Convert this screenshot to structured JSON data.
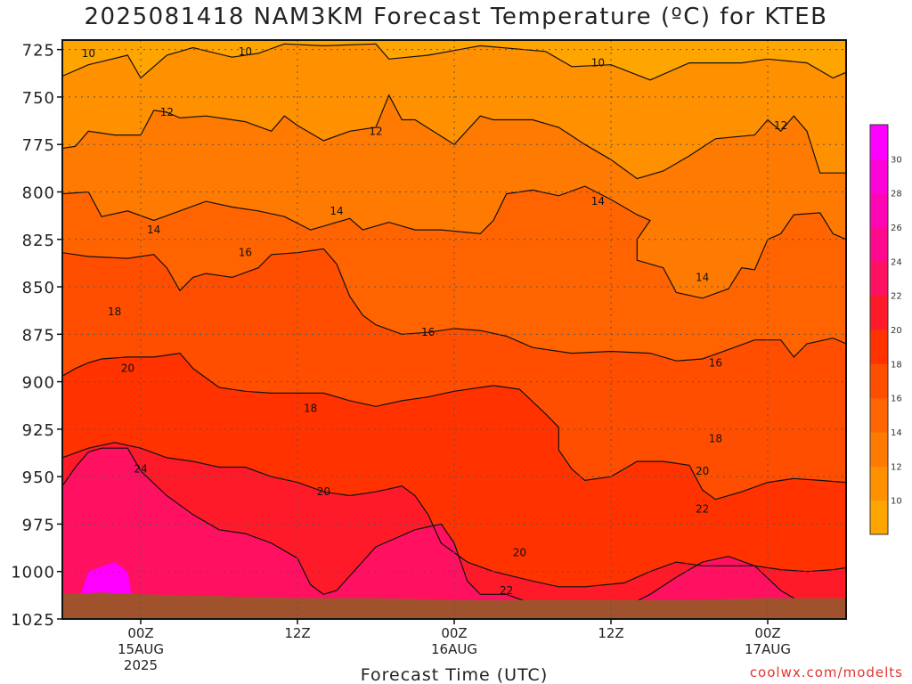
{
  "title": "2025081418 NAM3KM Forecast Temperature (ºC) for KTEB",
  "credit": "coolwx.com/modelts",
  "colors": {
    "ground": "#a0522d",
    "grid": "#555555",
    "contour": "#111111"
  },
  "chart_data": {
    "type": "heatmap",
    "title": "2025081418 NAM3KM Forecast Temperature (ºC) for KTEB",
    "xlabel": "Forecast Time (UTC)",
    "ylabel": "",
    "y_ticks": [
      725,
      750,
      775,
      800,
      825,
      850,
      875,
      900,
      925,
      950,
      975,
      1000,
      1025
    ],
    "y_range": [
      1025,
      720
    ],
    "x_ticks": [
      {
        "hour": 6,
        "label": "00Z",
        "sub1": "15AUG",
        "sub2": "2025"
      },
      {
        "hour": 18,
        "label": "12Z",
        "sub1": "",
        "sub2": ""
      },
      {
        "hour": 30,
        "label": "00Z",
        "sub1": "16AUG",
        "sub2": ""
      },
      {
        "hour": 42,
        "label": "12Z",
        "sub1": "",
        "sub2": ""
      },
      {
        "hour": 54,
        "label": "00Z",
        "sub1": "17AUG",
        "sub2": ""
      }
    ],
    "x_range": [
      0,
      60
    ],
    "grid": true,
    "colorbar": {
      "levels": [
        10,
        12,
        14,
        16,
        18,
        20,
        22,
        24,
        26,
        28,
        30
      ],
      "colors": [
        "#ffa500",
        "#ff9000",
        "#ff7a00",
        "#ff6400",
        "#ff4e00",
        "#ff3200",
        "#ff1a2a",
        "#ff1060",
        "#ff0a8c",
        "#ff06b4",
        "#ff04d8",
        "#ff00ff"
      ]
    },
    "contours": [
      {
        "level": 10,
        "points": [
          [
            0,
            739
          ],
          [
            2,
            733
          ],
          [
            5,
            728
          ],
          [
            6,
            740
          ],
          [
            8,
            728
          ],
          [
            10,
            724
          ],
          [
            13,
            729
          ],
          [
            15,
            727
          ],
          [
            17,
            722
          ],
          [
            20,
            723
          ],
          [
            24,
            722
          ],
          [
            25,
            730
          ],
          [
            28,
            728
          ],
          [
            32,
            723
          ],
          [
            37,
            726
          ],
          [
            39,
            734
          ],
          [
            42,
            733
          ],
          [
            45,
            741
          ],
          [
            48,
            732
          ],
          [
            52,
            732
          ],
          [
            54,
            730
          ],
          [
            57,
            732
          ],
          [
            59,
            740
          ],
          [
            60,
            737
          ]
        ]
      },
      {
        "level": 12,
        "points": [
          [
            0,
            777
          ],
          [
            1,
            776
          ],
          [
            2,
            768
          ],
          [
            4,
            770
          ],
          [
            6,
            770
          ],
          [
            7,
            757
          ],
          [
            8,
            758
          ],
          [
            9,
            761
          ],
          [
            11,
            760
          ],
          [
            14,
            763
          ],
          [
            16,
            768
          ],
          [
            17,
            760
          ],
          [
            18,
            765
          ],
          [
            20,
            773
          ],
          [
            22,
            768
          ],
          [
            24,
            766
          ],
          [
            25,
            749
          ],
          [
            26,
            762
          ],
          [
            27,
            762
          ],
          [
            30,
            775
          ],
          [
            32,
            760
          ],
          [
            33,
            762
          ],
          [
            36,
            762
          ],
          [
            38,
            766
          ],
          [
            40,
            775
          ],
          [
            42,
            783
          ],
          [
            44,
            793
          ],
          [
            46,
            789
          ],
          [
            48,
            781
          ],
          [
            50,
            772
          ],
          [
            53,
            770
          ],
          [
            54,
            762
          ],
          [
            55,
            768
          ],
          [
            56,
            760
          ],
          [
            57,
            768
          ],
          [
            58,
            790
          ],
          [
            60,
            790
          ]
        ]
      },
      {
        "level": 14,
        "points": [
          [
            0,
            801
          ],
          [
            2,
            800
          ],
          [
            3,
            813
          ],
          [
            5,
            810
          ],
          [
            7,
            815
          ],
          [
            9,
            810
          ],
          [
            11,
            805
          ],
          [
            13,
            808
          ],
          [
            15,
            810
          ],
          [
            17,
            813
          ],
          [
            19,
            820
          ],
          [
            20,
            818
          ],
          [
            22,
            814
          ],
          [
            23,
            820
          ],
          [
            25,
            816
          ],
          [
            27,
            820
          ],
          [
            29,
            820
          ],
          [
            32,
            822
          ],
          [
            33,
            815
          ],
          [
            34,
            801
          ],
          [
            36,
            799
          ],
          [
            38,
            802
          ],
          [
            40,
            797
          ],
          [
            42,
            804
          ],
          [
            44,
            812
          ],
          [
            45,
            815
          ],
          [
            44,
            825
          ],
          [
            44,
            836
          ],
          [
            46,
            840
          ],
          [
            47,
            853
          ],
          [
            49,
            856
          ],
          [
            51,
            851
          ],
          [
            52,
            840
          ],
          [
            53,
            841
          ],
          [
            54,
            825
          ],
          [
            55,
            822
          ],
          [
            56,
            812
          ],
          [
            58,
            811
          ],
          [
            59,
            822
          ],
          [
            60,
            825
          ]
        ]
      },
      {
        "level": 16,
        "points": [
          [
            0,
            832
          ],
          [
            2,
            834
          ],
          [
            5,
            835
          ],
          [
            7,
            833
          ],
          [
            8,
            840
          ],
          [
            9,
            852
          ],
          [
            10,
            845
          ],
          [
            11,
            843
          ],
          [
            13,
            845
          ],
          [
            15,
            840
          ],
          [
            16,
            833
          ],
          [
            18,
            832
          ],
          [
            20,
            830
          ],
          [
            21,
            838
          ],
          [
            22,
            855
          ],
          [
            23,
            865
          ],
          [
            24,
            870
          ],
          [
            26,
            875
          ],
          [
            28,
            874
          ],
          [
            30,
            872
          ],
          [
            32,
            873
          ],
          [
            34,
            876
          ],
          [
            36,
            882
          ],
          [
            39,
            885
          ],
          [
            42,
            884
          ],
          [
            45,
            885
          ],
          [
            47,
            889
          ],
          [
            49,
            888
          ],
          [
            51,
            883
          ],
          [
            53,
            878
          ],
          [
            55,
            878
          ],
          [
            56,
            887
          ],
          [
            57,
            880
          ],
          [
            59,
            877
          ],
          [
            60,
            880
          ]
        ]
      },
      {
        "level": 18,
        "points": [
          [
            0,
            897
          ],
          [
            1,
            893
          ],
          [
            2,
            890
          ],
          [
            3,
            888
          ],
          [
            5,
            887
          ],
          [
            7,
            887
          ],
          [
            9,
            885
          ],
          [
            10,
            893
          ],
          [
            12,
            903
          ],
          [
            14,
            905
          ],
          [
            16,
            906
          ],
          [
            18,
            906
          ],
          [
            20,
            906
          ],
          [
            22,
            910
          ],
          [
            24,
            913
          ],
          [
            26,
            910
          ],
          [
            28,
            908
          ],
          [
            30,
            905
          ],
          [
            33,
            902
          ],
          [
            35,
            904
          ],
          [
            37,
            917
          ],
          [
            38,
            924
          ],
          [
            38,
            936
          ],
          [
            39,
            946
          ],
          [
            40,
            952
          ],
          [
            42,
            950
          ],
          [
            44,
            942
          ],
          [
            46,
            942
          ],
          [
            48,
            944
          ],
          [
            49,
            957
          ],
          [
            50,
            962
          ],
          [
            52,
            958
          ],
          [
            54,
            953
          ],
          [
            56,
            951
          ],
          [
            58,
            952
          ],
          [
            60,
            953
          ]
        ]
      },
      {
        "level": 20,
        "points": [
          [
            0,
            940
          ],
          [
            2,
            935
          ],
          [
            4,
            932
          ],
          [
            6,
            935
          ],
          [
            8,
            940
          ],
          [
            10,
            942
          ],
          [
            12,
            945
          ],
          [
            14,
            945
          ],
          [
            16,
            950
          ],
          [
            18,
            953
          ],
          [
            20,
            958
          ],
          [
            22,
            960
          ],
          [
            24,
            958
          ],
          [
            26,
            955
          ],
          [
            27,
            960
          ],
          [
            28,
            970
          ],
          [
            29,
            985
          ],
          [
            31,
            995
          ],
          [
            33,
            1000
          ],
          [
            36,
            1005
          ],
          [
            38,
            1008
          ],
          [
            40,
            1008
          ],
          [
            43,
            1006
          ],
          [
            45,
            1000
          ],
          [
            47,
            995
          ],
          [
            49,
            997
          ],
          [
            51,
            997
          ],
          [
            53,
            997
          ],
          [
            55,
            999
          ],
          [
            57,
            1000
          ],
          [
            59,
            999
          ],
          [
            60,
            998
          ]
        ]
      },
      {
        "level": 22,
        "points": [
          [
            0,
            955
          ],
          [
            1,
            945
          ],
          [
            2,
            937
          ],
          [
            3,
            935
          ],
          [
            5,
            935
          ],
          [
            6,
            947
          ],
          [
            8,
            960
          ],
          [
            10,
            970
          ],
          [
            12,
            978
          ],
          [
            14,
            980
          ],
          [
            16,
            985
          ],
          [
            18,
            993
          ],
          [
            19,
            1007
          ],
          [
            20,
            1012
          ],
          [
            21,
            1010
          ],
          [
            24,
            987
          ],
          [
            27,
            978
          ],
          [
            29,
            975
          ],
          [
            30,
            985
          ],
          [
            31,
            1005
          ],
          [
            32,
            1012
          ],
          [
            34,
            1012
          ],
          [
            36,
            1017
          ],
          [
            38,
            1020
          ],
          [
            41,
            1020
          ],
          [
            43,
            1019
          ],
          [
            45,
            1012
          ],
          [
            47,
            1003
          ],
          [
            49,
            995
          ],
          [
            51,
            992
          ],
          [
            53,
            997
          ],
          [
            55,
            1010
          ],
          [
            57,
            1018
          ],
          [
            60,
            1019
          ]
        ]
      }
    ]
  }
}
